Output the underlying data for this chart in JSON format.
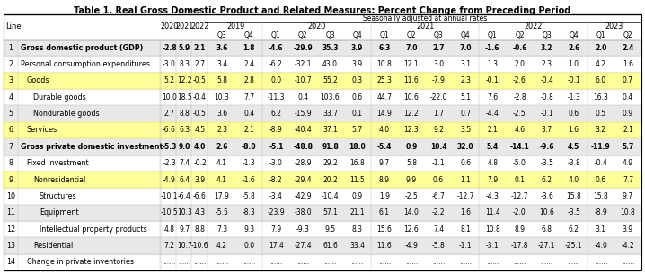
{
  "title": "Table 1. Real Gross Domestic Product and Related Measures: Percent Change from Preceding Period",
  "subtitle": "Seasonally adjusted at annual rates",
  "highlight_color": "#FFFF99",
  "alt_row_color": "#E8E8E8",
  "border_color": "#000000",
  "grid_color": "#999999",
  "rows": [
    {
      "line": "1",
      "label": "Gross domestic product (GDP)",
      "bold": true,
      "indent": 0,
      "highlight": false,
      "values": [
        "-2.8",
        "5.9",
        "2.1",
        "3.6",
        "1.8",
        "-4.6",
        "-29.9",
        "35.3",
        "3.9",
        "6.3",
        "7.0",
        "2.7",
        "7.0",
        "-1.6",
        "-0.6",
        "3.2",
        "2.6",
        "2.0",
        "2.4"
      ]
    },
    {
      "line": "2",
      "label": "Personal consumption expenditures",
      "bold": false,
      "indent": 0,
      "highlight": false,
      "values": [
        "-3.0",
        "8.3",
        "2.7",
        "3.4",
        "2.4",
        "-6.2",
        "-32.1",
        "43.0",
        "3.9",
        "10.8",
        "12.1",
        "3.0",
        "3.1",
        "1.3",
        "2.0",
        "2.3",
        "1.0",
        "4.2",
        "1.6"
      ]
    },
    {
      "line": "3",
      "label": "Goods",
      "bold": false,
      "indent": 1,
      "highlight": true,
      "values": [
        "5.2",
        "12.2",
        "-0.5",
        "5.8",
        "2.8",
        "0.0",
        "-10.7",
        "55.2",
        "0.3",
        "25.3",
        "11.6",
        "-7.9",
        "2.3",
        "-0.1",
        "-2.6",
        "-0.4",
        "-0.1",
        "6.0",
        "0.7"
      ]
    },
    {
      "line": "4",
      "label": "Durable goods",
      "bold": false,
      "indent": 2,
      "highlight": false,
      "values": [
        "10.0",
        "18.5",
        "-0.4",
        "10.3",
        "7.7",
        "-11.3",
        "0.4",
        "103.6",
        "0.6",
        "44.7",
        "10.6",
        "-22.0",
        "5.1",
        "7.6",
        "-2.8",
        "-0.8",
        "-1.3",
        "16.3",
        "0.4"
      ]
    },
    {
      "line": "5",
      "label": "Nondurable goods",
      "bold": false,
      "indent": 2,
      "highlight": false,
      "values": [
        "2.7",
        "8.8",
        "-0.5",
        "3.6",
        "0.4",
        "6.2",
        "-15.9",
        "33.7",
        "0.1",
        "14.9",
        "12.2",
        "1.7",
        "0.7",
        "-4.4",
        "-2.5",
        "-0.1",
        "0.6",
        "0.5",
        "0.9"
      ]
    },
    {
      "line": "6",
      "label": "Services",
      "bold": false,
      "indent": 1,
      "highlight": true,
      "values": [
        "-6.6",
        "6.3",
        "4.5",
        "2.3",
        "2.1",
        "-8.9",
        "-40.4",
        "37.1",
        "5.7",
        "4.0",
        "12.3",
        "9.2",
        "3.5",
        "2.1",
        "4.6",
        "3.7",
        "1.6",
        "3.2",
        "2.1"
      ]
    },
    {
      "line": "7",
      "label": "Gross private domestic investment",
      "bold": true,
      "indent": 0,
      "highlight": false,
      "values": [
        "-5.3",
        "9.0",
        "4.0",
        "2.6",
        "-8.0",
        "-5.1",
        "-48.8",
        "91.8",
        "18.0",
        "-5.4",
        "0.9",
        "10.4",
        "32.0",
        "5.4",
        "-14.1",
        "-9.6",
        "4.5",
        "-11.9",
        "5.7"
      ]
    },
    {
      "line": "8",
      "label": "Fixed investment",
      "bold": false,
      "indent": 1,
      "highlight": false,
      "values": [
        "-2.3",
        "7.4",
        "-0.2",
        "4.1",
        "-1.3",
        "-3.0",
        "-28.9",
        "29.2",
        "16.8",
        "9.7",
        "5.8",
        "-1.1",
        "0.6",
        "4.8",
        "-5.0",
        "-3.5",
        "-3.8",
        "-0.4",
        "4.9"
      ]
    },
    {
      "line": "9",
      "label": "Nonresidential",
      "bold": false,
      "indent": 2,
      "highlight": true,
      "values": [
        "-4.9",
        "6.4",
        "3.9",
        "4.1",
        "-1.6",
        "-8.2",
        "-29.4",
        "20.2",
        "11.5",
        "8.9",
        "9.9",
        "0.6",
        "1.1",
        "7.9",
        "0.1",
        "6.2",
        "4.0",
        "0.6",
        "7.7"
      ]
    },
    {
      "line": "10",
      "label": "Structures",
      "bold": false,
      "indent": 3,
      "highlight": false,
      "values": [
        "-10.1",
        "-6.4",
        "-6.6",
        "17.9",
        "-5.8",
        "-3.4",
        "-42.9",
        "-10.4",
        "0.9",
        "1.9",
        "-2.5",
        "-6.7",
        "-12.7",
        "-4.3",
        "-12.7",
        "-3.6",
        "15.8",
        "15.8",
        "9.7"
      ]
    },
    {
      "line": "11",
      "label": "Equipment",
      "bold": false,
      "indent": 3,
      "highlight": false,
      "values": [
        "-10.5",
        "10.3",
        "4.3",
        "-5.5",
        "-8.3",
        "-23.9",
        "-38.0",
        "57.1",
        "21.1",
        "6.1",
        "14.0",
        "-2.2",
        "1.6",
        "11.4",
        "-2.0",
        "10.6",
        "-3.5",
        "-8.9",
        "10.8"
      ]
    },
    {
      "line": "12",
      "label": "Intellectual property products",
      "bold": false,
      "indent": 3,
      "highlight": false,
      "values": [
        "4.8",
        "9.7",
        "8.8",
        "7.3",
        "9.3",
        "7.9",
        "-9.3",
        "9.5",
        "8.3",
        "15.6",
        "12.6",
        "7.4",
        "8.1",
        "10.8",
        "8.9",
        "6.8",
        "6.2",
        "3.1",
        "3.9"
      ]
    },
    {
      "line": "13",
      "label": "Residential",
      "bold": false,
      "indent": 2,
      "highlight": false,
      "values": [
        "7.2",
        "10.7",
        "-10.6",
        "4.2",
        "0.0",
        "17.4",
        "-27.4",
        "61.6",
        "33.4",
        "11.6",
        "-4.9",
        "-5.8",
        "-1.1",
        "-3.1",
        "-17.8",
        "-27.1",
        "-25.1",
        "-4.0",
        "-4.2"
      ]
    },
    {
      "line": "14",
      "label": "Change in private inventories",
      "bold": false,
      "indent": 1,
      "highlight": false,
      "values": [
        "......",
        "......",
        "......",
        "......",
        "......",
        "......",
        "......",
        "......",
        "......",
        "......",
        "......",
        "......",
        "......",
        "......",
        "......",
        "......",
        "......",
        "......",
        "......"
      ]
    }
  ],
  "col_labels": {
    "annual": [
      "2020",
      "2021",
      "2022"
    ],
    "year_groups": [
      {
        "year": "2019",
        "quarters": [
          "Q3",
          "Q4"
        ]
      },
      {
        "year": "2020",
        "quarters": [
          "Q1",
          "Q2",
          "Q3",
          "Q4"
        ]
      },
      {
        "year": "2021",
        "quarters": [
          "Q1",
          "Q2",
          "Q3",
          "Q4"
        ]
      },
      {
        "year": "2022",
        "quarters": [
          "Q1",
          "Q2",
          "Q3",
          "Q4"
        ]
      },
      {
        "year": "2023",
        "quarters": [
          "Q1",
          "Q2"
        ]
      }
    ]
  }
}
